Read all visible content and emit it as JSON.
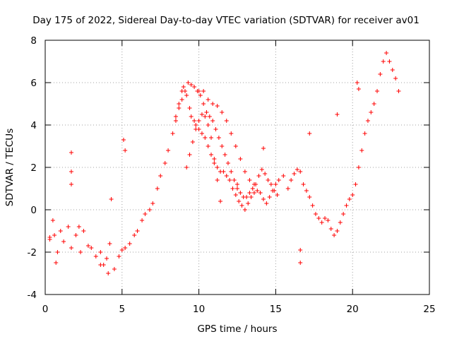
{
  "chart_data": {
    "type": "scatter",
    "title": "Day 175 of 2022, Sidereal Day-to-day VTEC variation (SDTVAR) for receiver av01",
    "xlabel": "GPS time / hours",
    "ylabel": "SDTVAR / TECUs",
    "xlim": [
      0,
      25
    ],
    "ylim": [
      -4,
      8
    ],
    "xticks": [
      0,
      5,
      10,
      15,
      20,
      25
    ],
    "yticks": [
      -4,
      -2,
      0,
      2,
      4,
      6,
      8
    ],
    "xtick_labels": [
      "0",
      "5",
      "10",
      "15",
      "20",
      "25"
    ],
    "ytick_labels": [
      "-4",
      "-2",
      "0",
      "2",
      "4",
      "6",
      "8"
    ],
    "grid": true,
    "marker": "+",
    "color": "#ff0000",
    "series": [
      {
        "name": "av01",
        "x": [
          0.3,
          0.6,
          0.8,
          1.0,
          1.2,
          1.5,
          1.7,
          2.0,
          2.3,
          2.5,
          2.8,
          3.0,
          3.3,
          3.6,
          3.8,
          4.0,
          4.2,
          4.5,
          4.8,
          5.0,
          5.2,
          5.5,
          5.8,
          6.0,
          6.3,
          6.5,
          6.8,
          7.0,
          7.3,
          7.5,
          7.8,
          8.0,
          8.3,
          8.5,
          8.7,
          8.9,
          9.0,
          9.2,
          9.4,
          9.5,
          9.7,
          9.8,
          10.0,
          10.2,
          10.4,
          10.6,
          10.8,
          11.0,
          11.2,
          11.4,
          11.6,
          11.8,
          12.0,
          12.2,
          12.4,
          12.6,
          12.8,
          13.0,
          13.2,
          13.4,
          13.6,
          13.8,
          14.0,
          14.2,
          14.4,
          14.6,
          14.8,
          15.0,
          15.2,
          15.5,
          15.8,
          16.0,
          16.2,
          16.4,
          16.6,
          16.8,
          17.0,
          17.2,
          17.4,
          17.6,
          17.8,
          18.0,
          18.2,
          18.4,
          18.6,
          18.8,
          19.0,
          19.2,
          19.4,
          19.6,
          19.8,
          20.0,
          20.2,
          20.4,
          20.6,
          20.8,
          21.0,
          21.2,
          21.4,
          21.6,
          21.8,
          22.0,
          22.2,
          22.4,
          22.6,
          22.8,
          23.0,
          8.5,
          8.7,
          8.9,
          9.1,
          9.3,
          9.5,
          9.7,
          9.9,
          10.1,
          10.3,
          10.5,
          10.7,
          10.9,
          11.1,
          11.3,
          11.5,
          11.7,
          11.9,
          12.1,
          12.3,
          12.5,
          12.7,
          12.9,
          13.1,
          13.3,
          13.5,
          13.7,
          13.9,
          14.1,
          14.3,
          14.5,
          14.7,
          14.9,
          15.1,
          9.2,
          9.4,
          9.6,
          9.8,
          10.0,
          10.2,
          10.4,
          10.6,
          10.8,
          11.0,
          11.2,
          11.4,
          10.0,
          10.3,
          10.6,
          10.9,
          11.2,
          11.5,
          11.8,
          12.1,
          12.4,
          12.7,
          13.0,
          13.3,
          13.6,
          1.7,
          1.7,
          1.7,
          5.1,
          5.2,
          17.2,
          19.0,
          20.3,
          20.4,
          16.6,
          16.6,
          0.3,
          0.5,
          0.7,
          2.2,
          3.6,
          4.1,
          4.3,
          12.5,
          14.2
        ],
        "y": [
          -1.4,
          -1.2,
          -2.0,
          -1.0,
          -1.5,
          -0.8,
          -1.8,
          -1.2,
          -2.0,
          -1.0,
          -1.7,
          -1.8,
          -2.2,
          -2.0,
          -2.6,
          -2.3,
          -1.6,
          -2.8,
          -2.2,
          -1.9,
          -1.8,
          -1.6,
          -1.2,
          -1.0,
          -0.5,
          -0.2,
          0.0,
          0.3,
          1.0,
          1.6,
          2.2,
          2.8,
          3.6,
          4.4,
          5.0,
          5.6,
          5.8,
          5.4,
          4.8,
          4.4,
          4.2,
          4.0,
          3.8,
          3.6,
          3.4,
          3.0,
          2.6,
          2.2,
          2.0,
          1.8,
          1.8,
          1.6,
          1.4,
          1.0,
          0.7,
          0.4,
          0.2,
          0.0,
          0.3,
          0.6,
          0.8,
          0.9,
          0.8,
          0.5,
          0.3,
          0.6,
          0.9,
          1.2,
          1.4,
          1.6,
          1.0,
          1.4,
          1.7,
          1.9,
          1.8,
          1.2,
          0.9,
          0.6,
          0.2,
          -0.2,
          -0.4,
          -0.6,
          -0.4,
          -0.5,
          -0.9,
          -1.2,
          -1.0,
          -0.6,
          -0.2,
          0.2,
          0.5,
          0.7,
          1.2,
          2.0,
          2.8,
          3.6,
          4.2,
          4.6,
          5.0,
          5.6,
          6.4,
          7.0,
          7.4,
          7.0,
          6.6,
          6.2,
          5.6,
          4.2,
          4.8,
          5.2,
          5.6,
          6.0,
          5.9,
          5.8,
          5.6,
          5.4,
          5.0,
          4.6,
          4.4,
          4.2,
          3.8,
          3.4,
          3.0,
          2.6,
          2.2,
          1.8,
          1.4,
          1.0,
          0.8,
          0.6,
          0.6,
          0.8,
          1.0,
          1.2,
          1.6,
          1.9,
          1.7,
          1.4,
          1.2,
          0.9,
          0.7,
          2.0,
          2.6,
          3.2,
          3.8,
          4.2,
          4.5,
          4.4,
          4.0,
          3.4,
          2.4,
          1.4,
          0.4,
          5.6,
          5.6,
          5.2,
          5.0,
          4.9,
          4.6,
          4.2,
          3.6,
          3.0,
          2.4,
          1.8,
          1.4,
          1.2,
          2.7,
          1.8,
          1.2,
          3.3,
          2.8,
          3.6,
          4.5,
          6.0,
          5.7,
          -1.9,
          -2.5,
          -1.3,
          -0.5,
          -2.5,
          -0.8,
          -2.6,
          -3.0,
          0.5,
          1.2,
          2.9
        ]
      }
    ]
  }
}
